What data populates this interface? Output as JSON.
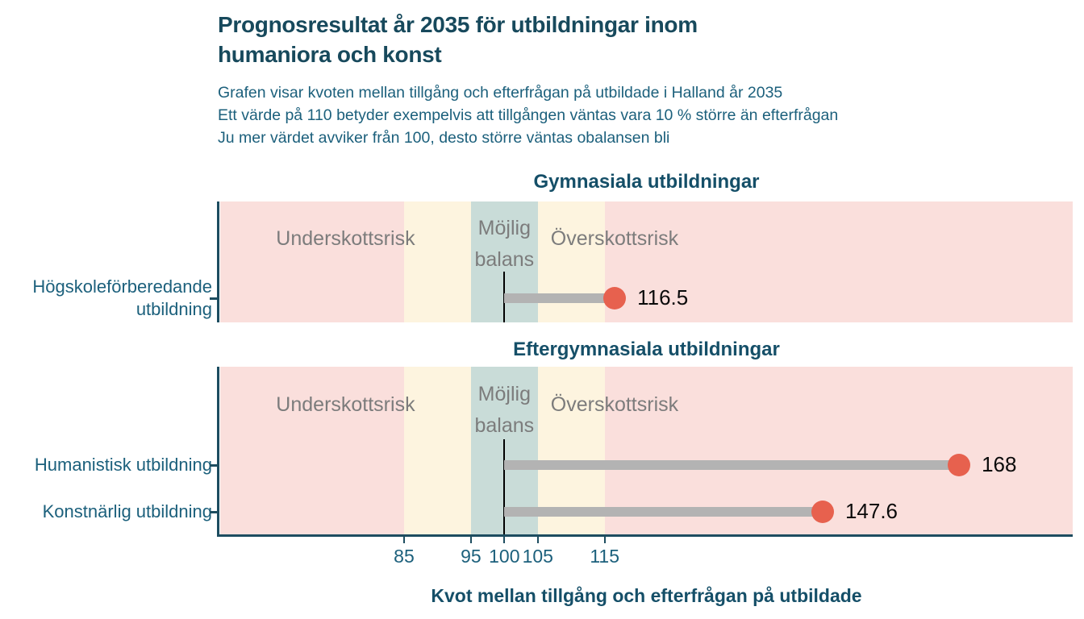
{
  "header": {
    "title_lines": [
      "Prognosresultat år 2035 för utbildningar inom",
      "humaniora och konst"
    ],
    "subtitle_lines": [
      "Grafen visar kvoten mellan tillgång och efterfrågan på utbildade i Halland år 2035",
      "Ett värde på 110 betyder exempelvis att tillgången väntas vara 10 % större än efterfrågan",
      "Ju mer värdet avviker från 100, desto större väntas obalansen bli"
    ]
  },
  "chart_data": {
    "type": "lollipop",
    "xlabel": "Kvot mellan tillgång och efterfrågan på utbildade",
    "x_ticks": [
      85,
      95,
      100,
      105,
      115
    ],
    "x_domain": [
      57.5,
      185
    ],
    "reference_value": 100,
    "grid": false,
    "zones": [
      {
        "name": "underskottsrisk",
        "from": 57.5,
        "to": 85,
        "color": "#fadfdc"
      },
      {
        "name": "buffer-left",
        "from": 85,
        "to": 95,
        "color": "#fdf4df"
      },
      {
        "name": "mojlig-balans",
        "from": 95,
        "to": 105,
        "color": "#c9dcd8"
      },
      {
        "name": "buffer-right",
        "from": 105,
        "to": 115,
        "color": "#fdf4df"
      },
      {
        "name": "overskottsrisk",
        "from": 115,
        "to": 185,
        "color": "#fadfdc"
      }
    ],
    "zone_labels": {
      "underskott": "Underskottsrisk",
      "balans_lines": [
        "Möjlig",
        "balans"
      ],
      "overskott": "Överskottsrisk"
    },
    "panels": [
      {
        "title": "Gymnasiala utbildningar",
        "rows": [
          {
            "label_lines": [
              "Högskoleförberedande",
              "utbildning"
            ],
            "value": 116.5
          }
        ]
      },
      {
        "title": "Eftergymnasiala utbildningar",
        "rows": [
          {
            "label_lines": [
              "Humanistisk utbildning"
            ],
            "value": 168
          },
          {
            "label_lines": [
              "Konstnärlig utbildning"
            ],
            "value": 147.6
          }
        ]
      }
    ]
  },
  "colors": {
    "title": "#17495c",
    "subtitle": "#1c607c",
    "panel_title": "#154f68",
    "axis_line": "#1d4d60",
    "tick_label": "#1c607c",
    "category_label": "#1c607c",
    "zone_label": "#7c7c7c",
    "reference_line": "#000000",
    "bar": "#b3b3b3",
    "dot": "#e7614e",
    "value_label": "#0a0a0a"
  }
}
